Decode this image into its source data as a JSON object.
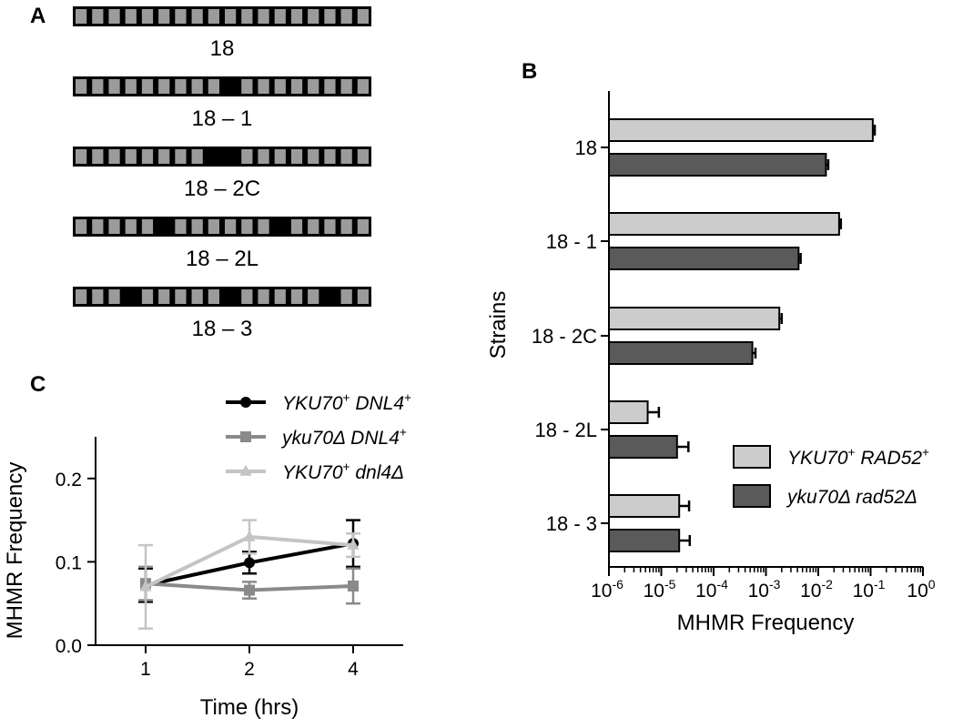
{
  "panel_a": {
    "label": "A",
    "rows": [
      {
        "name": "18",
        "black": []
      },
      {
        "name": "18 – 1",
        "black": [
          9
        ]
      },
      {
        "name": "18 – 2C",
        "black": [
          8,
          9
        ]
      },
      {
        "name": "18 – 2L",
        "black": [
          5,
          12
        ]
      },
      {
        "name": "18 – 3",
        "black": [
          3,
          9,
          15
        ]
      }
    ],
    "segments_per_bar": 18,
    "colors": {
      "segment": "#9b9b9b",
      "mutation": "#000000",
      "outline": "#000000"
    }
  },
  "panel_b": {
    "label": "B",
    "ylabel": "Strains",
    "xlabel": "MHMR Frequency",
    "xticks": [
      {
        "base": "10",
        "exp": "-6"
      },
      {
        "base": "10",
        "exp": "-5"
      },
      {
        "base": "10",
        "exp": "-4"
      },
      {
        "base": "10",
        "exp": "-3"
      },
      {
        "base": "10",
        "exp": "-2"
      },
      {
        "base": "10",
        "exp": "-1"
      },
      {
        "base": "10",
        "exp": "0"
      }
    ],
    "legend": [
      {
        "parts": [
          {
            "t": "YKU70",
            "i": true
          },
          {
            "t": "+",
            "i": false,
            "sup": true
          },
          {
            "t": " RAD52",
            "i": true
          },
          {
            "t": "+",
            "i": false,
            "sup": true
          }
        ],
        "color": "#cccccc"
      },
      {
        "parts": [
          {
            "t": "yku70Δ rad52Δ",
            "i": true
          }
        ],
        "color": "#5a5a5a"
      }
    ]
  },
  "panel_c": {
    "label": "C",
    "xlabel": "Time (hrs)",
    "ylabel": "MHMR Frequency",
    "yticks": [
      "0.0",
      "0.1",
      "0.2"
    ],
    "xticks": [
      "1",
      "2",
      "4"
    ],
    "legend": [
      {
        "parts": [
          {
            "t": "YKU70",
            "i": true
          },
          {
            "t": "+",
            "i": false,
            "sup": true
          },
          {
            "t": " DNL4",
            "i": true
          },
          {
            "t": "+",
            "i": false,
            "sup": true
          }
        ],
        "color": "#000000",
        "marker": "circle"
      },
      {
        "parts": [
          {
            "t": "yku70Δ DNL4",
            "i": true
          },
          {
            "t": "+",
            "i": false,
            "sup": true
          }
        ],
        "color": "#8a8a8a",
        "marker": "square"
      },
      {
        "parts": [
          {
            "t": "YKU70",
            "i": true
          },
          {
            "t": "+",
            "i": false,
            "sup": true
          },
          {
            "t": " dnl4Δ",
            "i": true
          }
        ],
        "color": "#c4c4c4",
        "marker": "triangle"
      }
    ]
  },
  "chart_data": [
    {
      "type": "bar",
      "orientation": "horizontal",
      "xscale": "log",
      "xlim": [
        1e-06,
        1
      ],
      "categories": [
        "18",
        "18 - 1",
        "18 - 2C",
        "18 - 2L",
        "18 - 3"
      ],
      "series": [
        {
          "name": "YKU70+ RAD52+",
          "color": "#cccccc",
          "values": [
            0.11,
            0.025,
            0.0018,
            5.5e-06,
            2.2e-05
          ],
          "errors": [
            0.01,
            0.002,
            0.0002,
            3.5e-06,
            1.2e-05
          ]
        },
        {
          "name": "yku70Δ rad52Δ",
          "color": "#5a5a5a",
          "values": [
            0.014,
            0.0042,
            0.00055,
            2e-05,
            2.2e-05
          ],
          "errors": [
            0.0015,
            0.0004,
            8e-05,
            1.3e-05,
            1.3e-05
          ]
        }
      ],
      "ylabel": "Strains",
      "xlabel": "MHMR Frequency"
    },
    {
      "type": "line",
      "x": [
        "1",
        "2",
        "4"
      ],
      "ylim": [
        0,
        0.25
      ],
      "series": [
        {
          "name": "YKU70+ DNL4+",
          "color": "#000000",
          "marker": "circle",
          "values": [
            0.072,
            0.099,
            0.122
          ],
          "errors": [
            0.02,
            0.013,
            0.028
          ]
        },
        {
          "name": "yku70Δ DNL4+",
          "color": "#8a8a8a",
          "marker": "square",
          "values": [
            0.074,
            0.066,
            0.071
          ],
          "errors": [
            0.02,
            0.01,
            0.021
          ]
        },
        {
          "name": "YKU70+ dnl4Δ",
          "color": "#c4c4c4",
          "marker": "triangle",
          "values": [
            0.07,
            0.13,
            0.12
          ],
          "errors": [
            0.05,
            0.02,
            0.014
          ]
        }
      ],
      "xlabel": "Time (hrs)",
      "ylabel": "MHMR Frequency"
    }
  ]
}
